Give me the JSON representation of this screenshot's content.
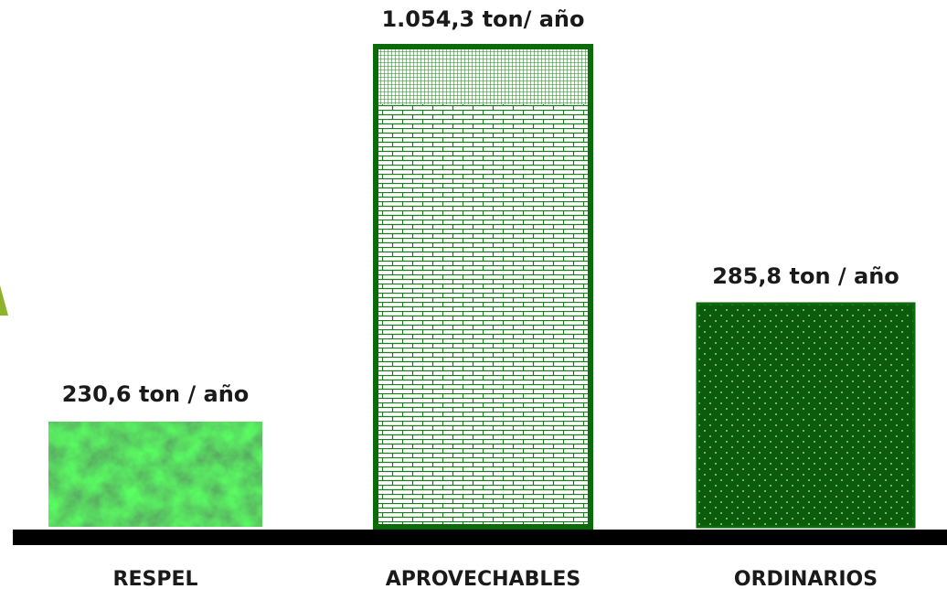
{
  "chart_data": {
    "type": "bar",
    "title": "",
    "xlabel": "",
    "ylabel": "",
    "categories": [
      "RESPEL",
      "APROVECHABLES",
      "ORDINARIOS"
    ],
    "values": [
      230.6,
      1054.3,
      285.8
    ],
    "value_labels": [
      "230,6 ton / año",
      "1.054,3 ton/ año",
      "285,8 ton / año"
    ],
    "unit": "ton / año",
    "ylim": [
      0,
      1054.3
    ],
    "grid": false,
    "legend": "none",
    "colors": {
      "bar_fill": "#1f7a1f",
      "bar_dark": "#0a5c0a",
      "bar_edge": "#0b6b0b",
      "baseline": "#000000",
      "arrow": "#8db32c"
    }
  }
}
